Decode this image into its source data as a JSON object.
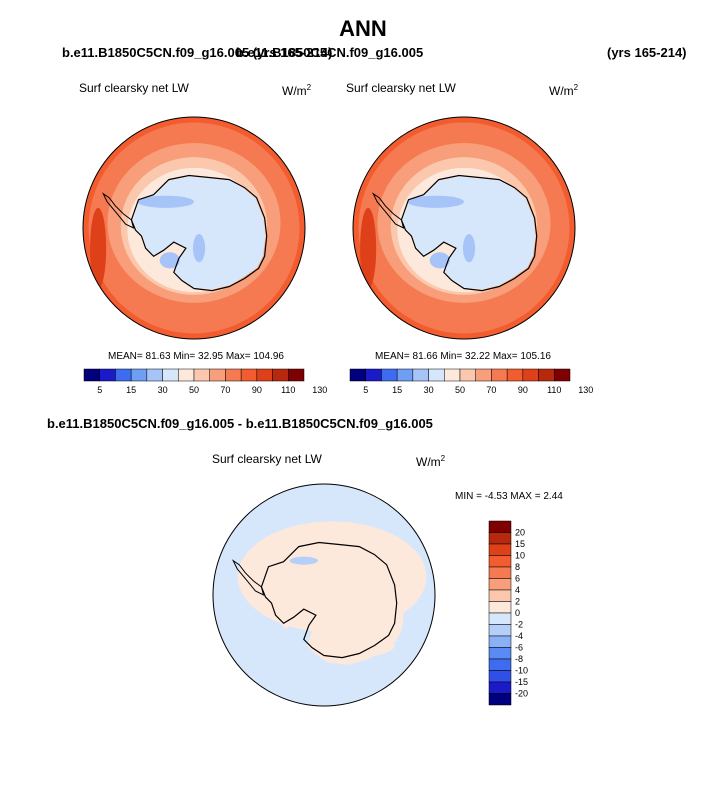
{
  "figure": {
    "title": "ANN",
    "case1": "b.e11.B1850C5CN.f09_g16.005 (yrs 165-214)",
    "case2_name": "b.e11.B1850C5CN.f09_g16.005",
    "case2_years": "(yrs 165-214)",
    "diff_title": "b.e11.B1850C5CN.f09_g16.005 - b.e11.B1850C5CN.f09_g16.005"
  },
  "panels": [
    {
      "label": "Surf clearsky net LW",
      "unit": "W/m",
      "unit_exp": "2",
      "stats": "MEAN=  81.63  Min=  32.95  Max= 104.96"
    },
    {
      "label": "Surf clearsky net LW",
      "unit": "W/m",
      "unit_exp": "2",
      "stats": "MEAN=  81.66  Min=  32.22  Max= 105.16"
    },
    {
      "label": "Surf clearsky net LW",
      "unit": "W/m",
      "unit_exp": "2",
      "stats": "MIN =  -4.53 MAX =   2.44"
    }
  ],
  "colors": {
    "abs_scale": [
      "#00007f",
      "#1a1ac8",
      "#3d6cf0",
      "#6f9ef5",
      "#a6c4f7",
      "#d6e6fb",
      "#fde8dc",
      "#fcc8ad",
      "#f89e7a",
      "#f57a52",
      "#f25c2e",
      "#de4119",
      "#b7280c",
      "#7f0000"
    ],
    "diff_scale": [
      "#00007f",
      "#1a1ac8",
      "#2f4fe6",
      "#3d6cf0",
      "#5a8af4",
      "#8ab0f6",
      "#b5cff9",
      "#d6e6fb",
      "#fde8dc",
      "#fcc8ad",
      "#f89e7a",
      "#f57a52",
      "#f25c2e",
      "#de4119",
      "#b7280c",
      "#7f0000"
    ],
    "ocean": "#f25c2e",
    "diff_ocean": "#d6e6fb"
  },
  "chart_data": [
    {
      "type": "heatmap",
      "projection": "south-polar stereographic",
      "title": "Surf clearsky net LW",
      "colorbar_labels": [
        "5",
        "15",
        "30",
        "50",
        "70",
        "90",
        "110",
        "130"
      ],
      "colorbar_levels": [
        5,
        10,
        15,
        20,
        30,
        40,
        50,
        60,
        70,
        80,
        90,
        100,
        110,
        120,
        130
      ],
      "mean": 81.63,
      "min": 32.95,
      "max": 104.96
    },
    {
      "type": "heatmap",
      "projection": "south-polar stereographic",
      "title": "Surf clearsky net LW",
      "colorbar_labels": [
        "5",
        "15",
        "30",
        "50",
        "70",
        "90",
        "110",
        "130"
      ],
      "colorbar_levels": [
        5,
        10,
        15,
        20,
        30,
        40,
        50,
        60,
        70,
        80,
        90,
        100,
        110,
        120,
        130
      ],
      "mean": 81.66,
      "min": 32.22,
      "max": 105.16
    },
    {
      "type": "heatmap",
      "projection": "south-polar stereographic",
      "title": "Surf clearsky net LW",
      "colorbar_labels": [
        "20",
        "15",
        "10",
        "8",
        "6",
        "4",
        "2",
        "0",
        "-2",
        "-4",
        "-6",
        "-8",
        "-10",
        "-15",
        "-20"
      ],
      "min": -4.53,
      "max": 2.44
    }
  ]
}
